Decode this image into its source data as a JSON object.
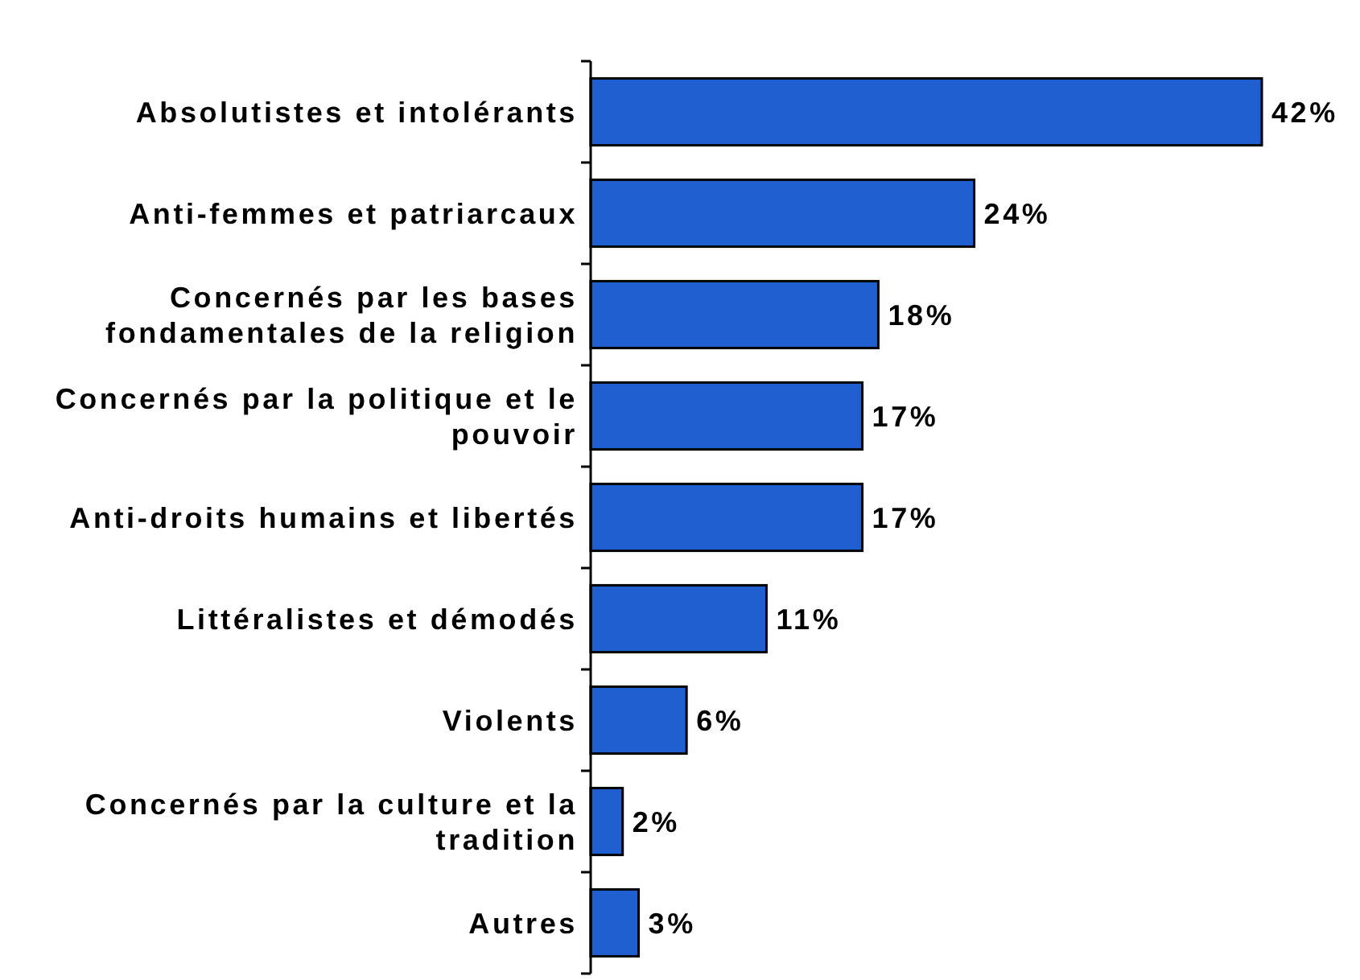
{
  "chart_data": {
    "type": "bar",
    "orientation": "horizontal",
    "categories": [
      "Absolutistes et intolérants",
      "Anti-femmes et patriarcaux",
      "Concernés par les bases fondamentales de la religion",
      "Concernés par la politique et le pouvoir",
      "Anti-droits humains et libertés",
      "Littéralistes et démodés",
      "Violents",
      "Concernés par la culture et la tradition",
      "Autres"
    ],
    "values": [
      42,
      24,
      18,
      17,
      17,
      11,
      6,
      2,
      3
    ],
    "value_labels": [
      "42%",
      "24%",
      "18%",
      "17%",
      "17%",
      "11%",
      "6%",
      "2%",
      "3%"
    ],
    "color": "#1f5fcf"
  }
}
